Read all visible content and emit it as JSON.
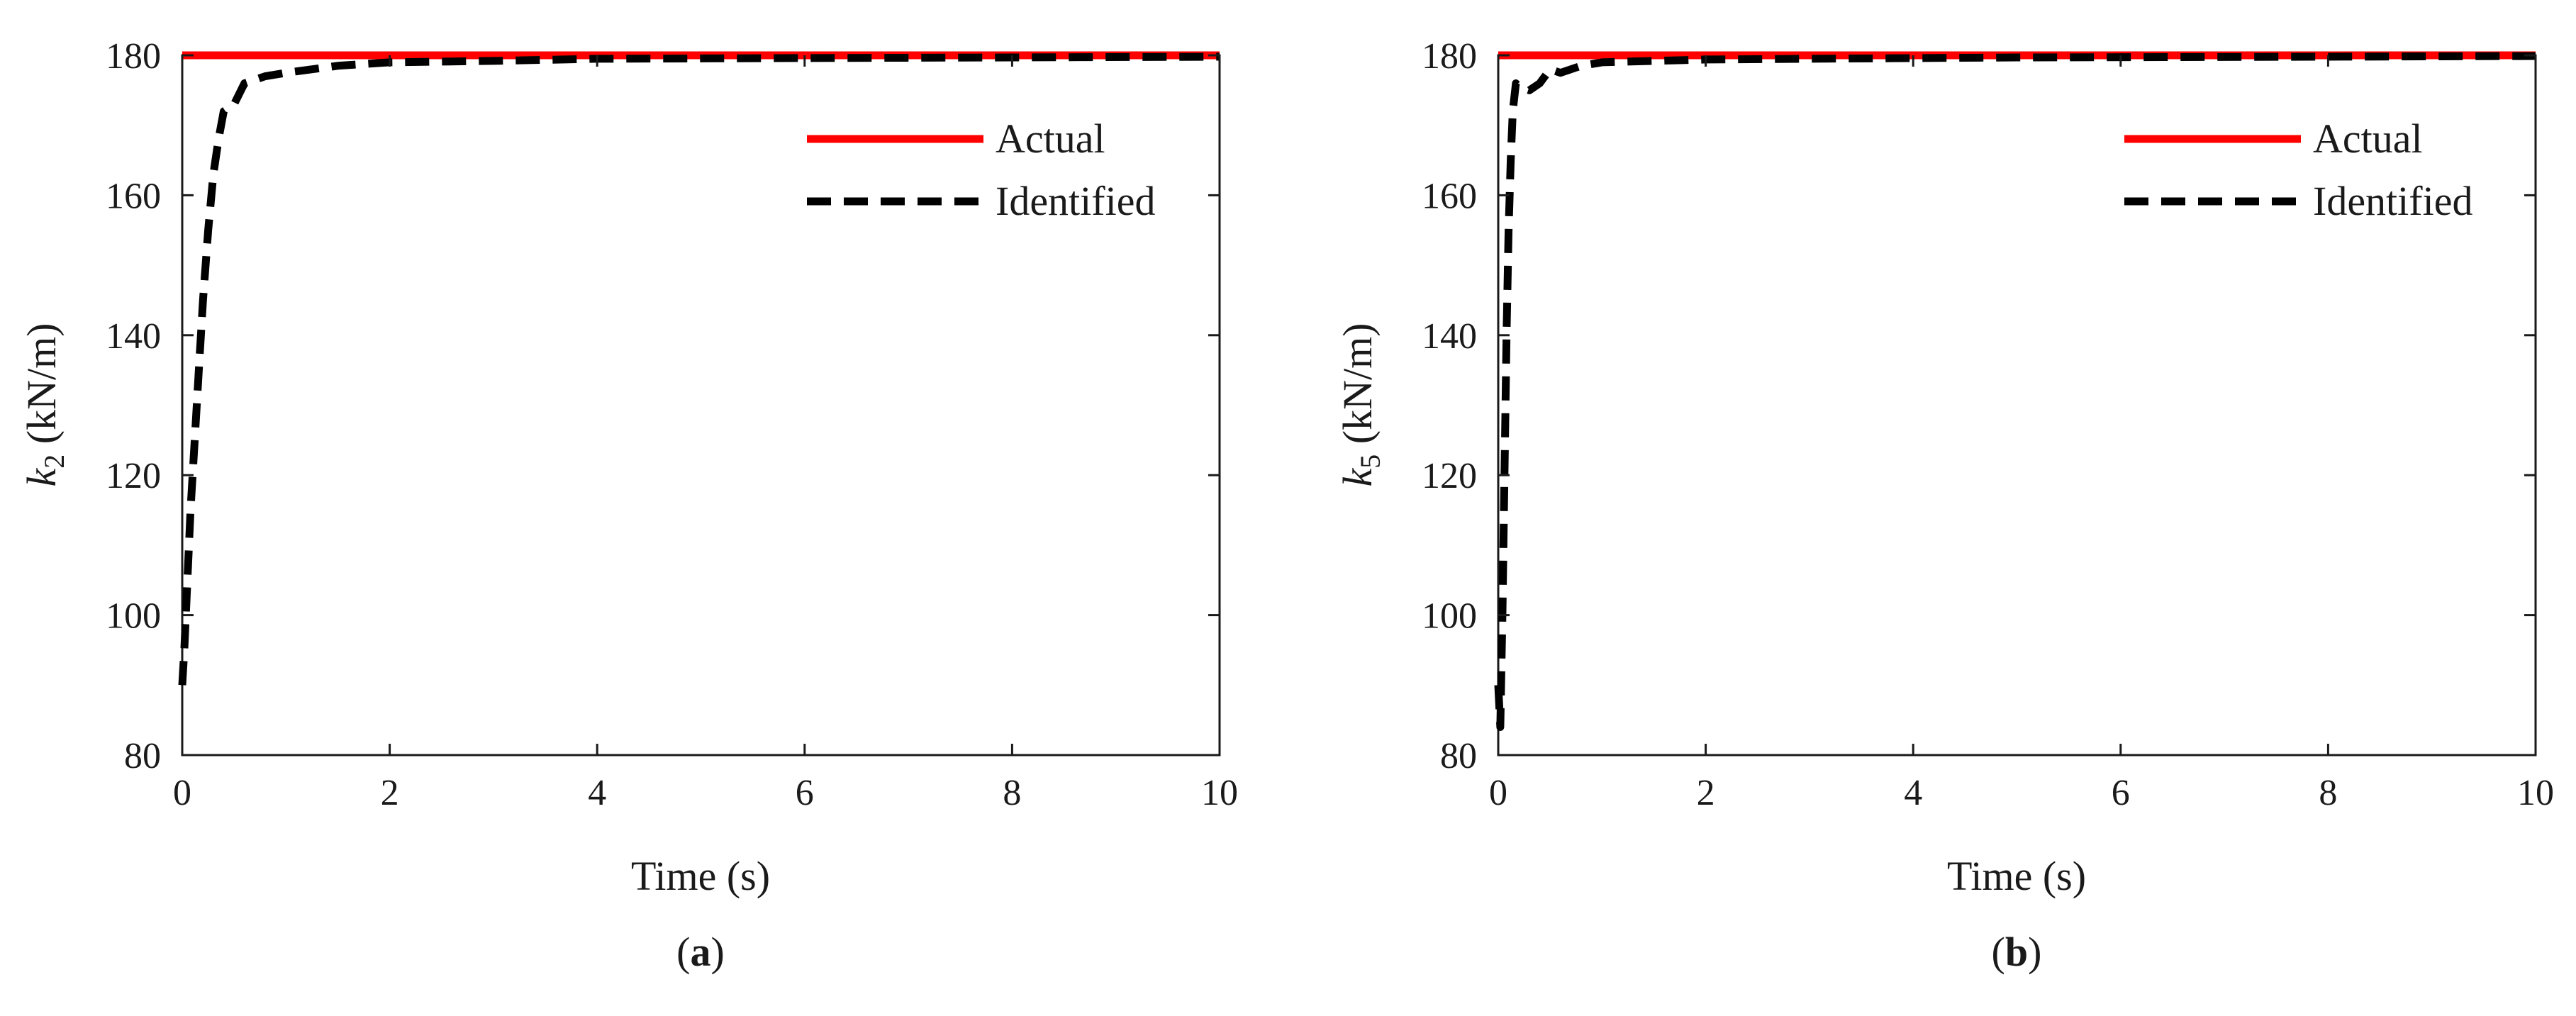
{
  "chart_data": [
    {
      "type": "line",
      "panel_label": "a",
      "xlabel": "Time (s)",
      "ylabel_symbol": "k",
      "ylabel_sub": "2",
      "ylabel_unit": " (kN/m)",
      "xlim": [
        0,
        10
      ],
      "ylim": [
        80,
        180
      ],
      "x_ticks": [
        0,
        2,
        4,
        6,
        8,
        10
      ],
      "y_ticks": [
        80,
        100,
        120,
        140,
        160,
        180
      ],
      "grid": false,
      "legend_position": "top-right",
      "series": [
        {
          "name": "Actual",
          "color": "#ff0000",
          "style": "solid",
          "x": [
            0,
            10
          ],
          "y": [
            180,
            180
          ]
        },
        {
          "name": "Identified",
          "color": "#000000",
          "style": "dashed",
          "x": [
            0,
            0.02,
            0.05,
            0.08,
            0.12,
            0.16,
            0.2,
            0.25,
            0.3,
            0.35,
            0.4,
            0.5,
            0.6,
            0.8,
            1.0,
            1.5,
            2.0,
            3.0,
            4.0,
            6.0,
            8.0,
            10.0
          ],
          "y": [
            90,
            95,
            105,
            115,
            125,
            135,
            145,
            155,
            163,
            168,
            172,
            173,
            176,
            177,
            177.5,
            178.5,
            179,
            179.2,
            179.5,
            179.6,
            179.7,
            179.8
          ]
        }
      ]
    },
    {
      "type": "line",
      "panel_label": "b",
      "xlabel": "Time (s)",
      "ylabel_symbol": "k",
      "ylabel_sub": "5",
      "ylabel_unit": " (kN/m)",
      "xlim": [
        0,
        10
      ],
      "ylim": [
        80,
        180
      ],
      "x_ticks": [
        0,
        2,
        4,
        6,
        8,
        10
      ],
      "y_ticks": [
        80,
        100,
        120,
        140,
        160,
        180
      ],
      "grid": false,
      "legend_position": "top-right",
      "series": [
        {
          "name": "Actual",
          "color": "#ff0000",
          "style": "solid",
          "x": [
            0,
            10
          ],
          "y": [
            180,
            180
          ]
        },
        {
          "name": "Identified",
          "color": "#000000",
          "style": "dashed",
          "x": [
            0,
            0.02,
            0.04,
            0.06,
            0.08,
            0.1,
            0.12,
            0.14,
            0.17,
            0.2,
            0.3,
            0.4,
            0.5,
            0.6,
            0.8,
            1.0,
            1.5,
            2.0,
            3.0,
            5.0,
            8.0,
            10.0
          ],
          "y": [
            90,
            84,
            100,
            120,
            140,
            155,
            165,
            172,
            176,
            175.5,
            175,
            176,
            178,
            177.5,
            178.5,
            179,
            179.2,
            179.4,
            179.5,
            179.7,
            179.8,
            179.9
          ]
        }
      ]
    }
  ]
}
